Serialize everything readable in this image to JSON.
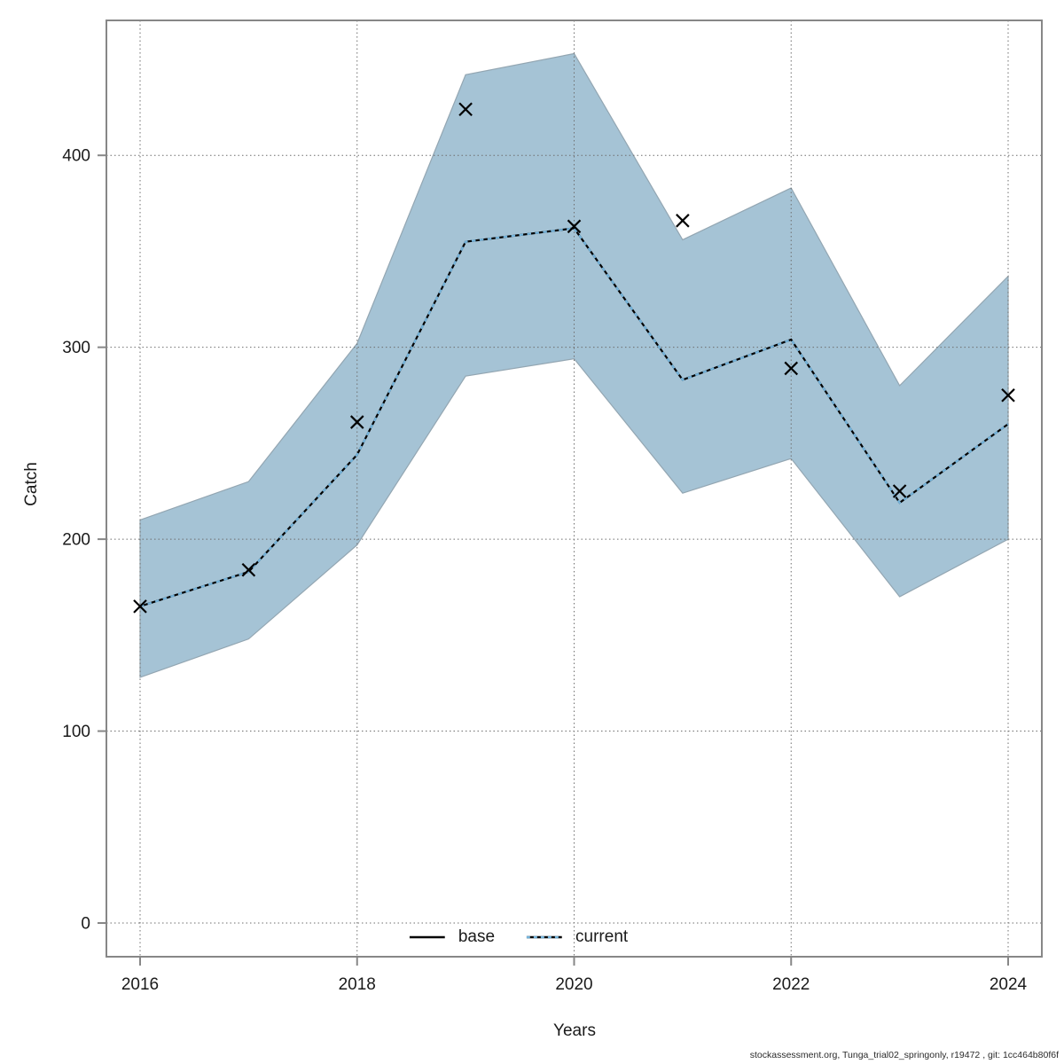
{
  "chart_data": {
    "type": "line",
    "title": "",
    "xlabel": "Years",
    "ylabel": "Catch",
    "x": [
      2016,
      2017,
      2018,
      2019,
      2020,
      2021,
      2022,
      2023,
      2024
    ],
    "series": [
      {
        "name": "base",
        "line": "solid",
        "color": "#000000",
        "values": [
          165,
          183,
          244,
          355,
          362,
          283,
          304,
          219,
          260
        ]
      },
      {
        "name": "current",
        "line": "dotted",
        "color": "#74b4dc",
        "values": [
          165,
          183,
          244,
          355,
          362,
          283,
          304,
          219,
          260
        ]
      }
    ],
    "observed": {
      "marker": "x",
      "color": "#000000",
      "values": [
        165,
        184,
        261,
        424,
        363,
        366,
        289,
        225,
        275
      ]
    },
    "band": {
      "series": "current",
      "color": "#a5c3d5",
      "border": "#93a6b2",
      "low": [
        128,
        148,
        197,
        285,
        294,
        224,
        242,
        170,
        200
      ],
      "high": [
        210,
        230,
        302,
        442,
        453,
        356,
        383,
        280,
        337
      ]
    },
    "x_ticks": [
      2016,
      2018,
      2020,
      2022,
      2024
    ],
    "y_ticks": [
      0,
      100,
      200,
      300,
      400
    ],
    "xlim": [
      2015.7,
      2024.3
    ],
    "ylim": [
      -18,
      470
    ],
    "grid": true,
    "grid_color": "#6e6e6e",
    "box_color": "#878787",
    "legend": {
      "position": "bottom-center",
      "entries": [
        {
          "label": "base",
          "line": "solid",
          "color": "#000000"
        },
        {
          "label": "current",
          "line": "dotted",
          "color": "#74b4dc"
        }
      ]
    }
  },
  "footer": {
    "text": "stockassessment.org, Tunga_trial02_springonly, r19472 , git: 1cc464b80f6f"
  }
}
